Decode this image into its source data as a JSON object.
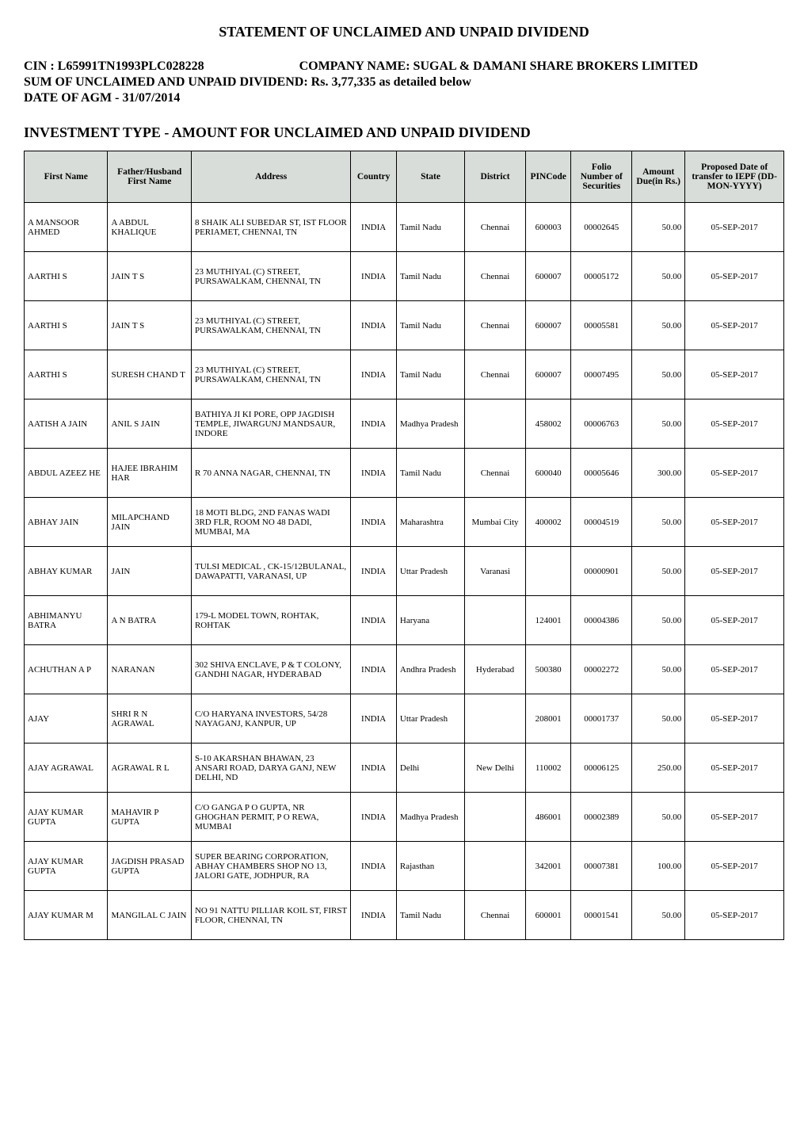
{
  "header": {
    "statement_title": "STATEMENT OF UNCLAIMED AND UNPAID DIVIDEND",
    "cin_label": "CIN : ",
    "cin": "L65991TN1993PLC028228",
    "company_label": "COMPANY NAME: ",
    "company": "SUGAL & DAMANI SHARE BROKERS LIMITED",
    "sum_line": "SUM OF UNCLAIMED AND UNPAID DIVIDEND: Rs. 3,77,335 as detailed below",
    "agm_line": "DATE OF AGM - 31/07/2014",
    "investment_title": "INVESTMENT TYPE - AMOUNT FOR UNCLAIMED AND UNPAID DIVIDEND"
  },
  "table": {
    "columns": {
      "first": "First Name",
      "father": "Father/Husband First Name",
      "addr": "Address",
      "country": "Country",
      "state": "State",
      "district": "District",
      "pin": "PINCode",
      "folio": "Folio Number of Securities",
      "amount": "Amount Due(in Rs.)",
      "date": "Proposed Date of transfer to IEPF (DD-MON-YYYY)"
    },
    "col_widths": {
      "first": "11%",
      "father": "11%",
      "addr": "21%",
      "country": "6%",
      "state": "9%",
      "district": "8%",
      "pin": "6%",
      "folio": "8%",
      "amount": "7%",
      "date": "13%"
    },
    "header_bg": "#d8ddd9",
    "rows": [
      {
        "first": "A MANSOOR AHMED",
        "father": "A ABDUL KHALIQUE",
        "addr": "8 SHAIK ALI SUBEDAR ST, IST FLOOR PERIAMET, CHENNAI, TN",
        "country": "INDIA",
        "state": "Tamil Nadu",
        "district": "Chennai",
        "pin": "600003",
        "folio": "00002645",
        "amount": "50.00",
        "date": "05-SEP-2017"
      },
      {
        "first": "AARTHI S",
        "father": "JAIN T S",
        "addr": "23 MUTHIYAL (C) STREET, PURSAWALKAM, CHENNAI, TN",
        "country": "INDIA",
        "state": "Tamil Nadu",
        "district": "Chennai",
        "pin": "600007",
        "folio": "00005172",
        "amount": "50.00",
        "date": "05-SEP-2017"
      },
      {
        "first": "AARTHI S",
        "father": "JAIN T S",
        "addr": "23 MUTHIYAL (C) STREET, PURSAWALKAM, CHENNAI, TN",
        "country": "INDIA",
        "state": "Tamil Nadu",
        "district": "Chennai",
        "pin": "600007",
        "folio": "00005581",
        "amount": "50.00",
        "date": "05-SEP-2017"
      },
      {
        "first": "AARTHI S",
        "father": "SURESH CHAND T",
        "addr": "23 MUTHIYAL (C) STREET, PURSAWALKAM, CHENNAI, TN",
        "country": "INDIA",
        "state": "Tamil Nadu",
        "district": "Chennai",
        "pin": "600007",
        "folio": "00007495",
        "amount": "50.00",
        "date": "05-SEP-2017"
      },
      {
        "first": "AATISH A JAIN",
        "father": "ANIL S JAIN",
        "addr": "BATHIYA JI KI PORE, OPP JAGDISH TEMPLE, JIWARGUNJ MANDSAUR, INDORE",
        "country": "INDIA",
        "state": "Madhya Pradesh",
        "district": "",
        "pin": "458002",
        "folio": "00006763",
        "amount": "50.00",
        "date": "05-SEP-2017"
      },
      {
        "first": "ABDUL AZEEZ HE",
        "father": "HAJEE IBRAHIM HAR",
        "addr": "R 70 ANNA NAGAR, CHENNAI, TN",
        "country": "INDIA",
        "state": "Tamil Nadu",
        "district": "Chennai",
        "pin": "600040",
        "folio": "00005646",
        "amount": "300.00",
        "date": "05-SEP-2017"
      },
      {
        "first": "ABHAY JAIN",
        "father": "MILAPCHAND JAIN",
        "addr": "18 MOTI BLDG, 2ND FANAS WADI 3RD FLR, ROOM NO 48 DADI, MUMBAI, MA",
        "country": "INDIA",
        "state": "Maharashtra",
        "district": "Mumbai City",
        "pin": "400002",
        "folio": "00004519",
        "amount": "50.00",
        "date": "05-SEP-2017"
      },
      {
        "first": "ABHAY KUMAR",
        "father": "JAIN",
        "addr": "TULSI MEDICAL , CK-15/12BULANAL, DAWAPATTI, VARANASI, UP",
        "country": "INDIA",
        "state": "Uttar Pradesh",
        "district": "Varanasi",
        "pin": "",
        "folio": "00000901",
        "amount": "50.00",
        "date": "05-SEP-2017"
      },
      {
        "first": "ABHIMANYU BATRA",
        "father": "A N BATRA",
        "addr": "179-L MODEL TOWN, ROHTAK, ROHTAK",
        "country": "INDIA",
        "state": "Haryana",
        "district": "",
        "pin": "124001",
        "folio": "00004386",
        "amount": "50.00",
        "date": "05-SEP-2017"
      },
      {
        "first": "ACHUTHAN A P",
        "father": "NARANAN",
        "addr": "302 SHIVA ENCLAVE, P & T COLONY, GANDHI NAGAR, HYDERABAD",
        "country": "INDIA",
        "state": "Andhra Pradesh",
        "district": "Hyderabad",
        "pin": "500380",
        "folio": "00002272",
        "amount": "50.00",
        "date": "05-SEP-2017"
      },
      {
        "first": "AJAY",
        "father": "SHRI R N AGRAWAL",
        "addr": "C/O HARYANA INVESTORS, 54/28 NAYAGANJ, KANPUR, UP",
        "country": "INDIA",
        "state": "Uttar Pradesh",
        "district": "",
        "pin": "208001",
        "folio": "00001737",
        "amount": "50.00",
        "date": "05-SEP-2017"
      },
      {
        "first": "AJAY AGRAWAL",
        "father": "AGRAWAL R L",
        "addr": "S-10 AKARSHAN BHAWAN, 23 ANSARI ROAD, DARYA GANJ, NEW DELHI, ND",
        "country": "INDIA",
        "state": "Delhi",
        "district": "New Delhi",
        "pin": "110002",
        "folio": "00006125",
        "amount": "250.00",
        "date": "05-SEP-2017"
      },
      {
        "first": "AJAY KUMAR GUPTA",
        "father": "MAHAVIR P GUPTA",
        "addr": "C/O GANGA P O GUPTA, NR GHOGHAN PERMIT, P O REWA, MUMBAI",
        "country": "INDIA",
        "state": "Madhya Pradesh",
        "district": "",
        "pin": "486001",
        "folio": "00002389",
        "amount": "50.00",
        "date": "05-SEP-2017"
      },
      {
        "first": "AJAY KUMAR GUPTA",
        "father": "JAGDISH PRASAD GUPTA",
        "addr": "SUPER BEARING CORPORATION, ABHAY CHAMBERS SHOP NO 13, JALORI GATE, JODHPUR, RA",
        "country": "INDIA",
        "state": "Rajasthan",
        "district": "",
        "pin": "342001",
        "folio": "00007381",
        "amount": "100.00",
        "date": "05-SEP-2017"
      },
      {
        "first": "AJAY KUMAR M",
        "father": "MANGILAL C JAIN",
        "addr": "NO 91 NATTU PILLIAR KOIL ST, FIRST FLOOR, CHENNAI, TN",
        "country": "INDIA",
        "state": "Tamil Nadu",
        "district": "Chennai",
        "pin": "600001",
        "folio": "00001541",
        "amount": "50.00",
        "date": "05-SEP-2017"
      }
    ]
  }
}
